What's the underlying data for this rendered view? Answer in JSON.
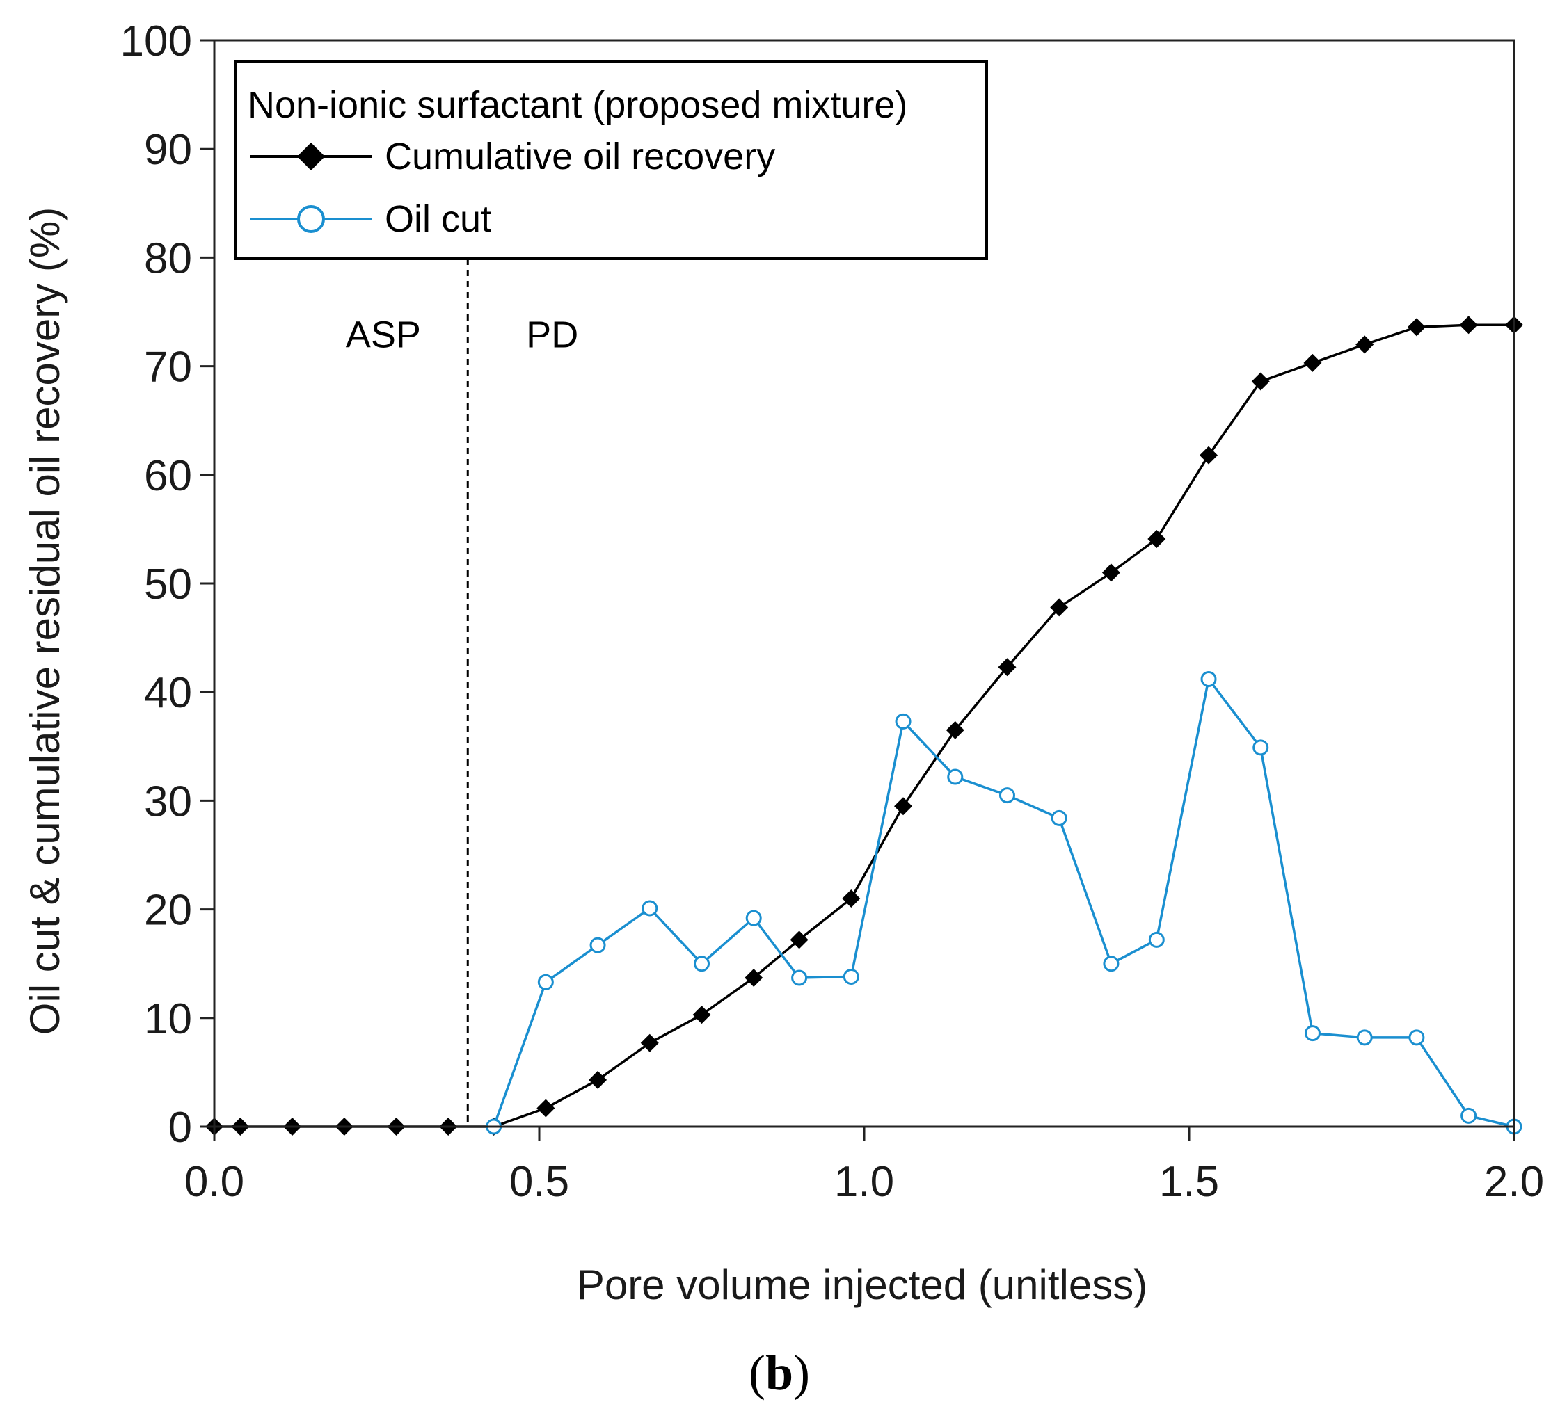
{
  "chart_data": {
    "type": "line",
    "xlabel": "Pore volume injected (unitless)",
    "ylabel": "Oil cut & cumulative residual oil recovery (%)",
    "xlim": [
      0,
      2.0
    ],
    "ylim": [
      0,
      100
    ],
    "xticks": [
      "0.0",
      "0.5",
      "1.0",
      "1.5",
      "2.0"
    ],
    "xtick_values": [
      0,
      0.5,
      1.0,
      1.5,
      2.0
    ],
    "yticks": [
      "0",
      "10",
      "20",
      "30",
      "40",
      "50",
      "60",
      "70",
      "80",
      "90",
      "100"
    ],
    "ytick_values": [
      0,
      10,
      20,
      30,
      40,
      50,
      60,
      70,
      80,
      90,
      100
    ],
    "grid": false,
    "legend": {
      "title": "Non-ionic surfactant (proposed mixture)",
      "placement": "top-left"
    },
    "divider": {
      "x": 0.39,
      "style": "dashed"
    },
    "region_labels": [
      {
        "text": "ASP",
        "x": 0.26,
        "y": 73
      },
      {
        "text": "PD",
        "x": 0.52,
        "y": 73
      }
    ],
    "panel_label": {
      "open": "(",
      "letter": "b",
      "close": ")"
    },
    "series": [
      {
        "name": "Cumulative oil recovery",
        "color": "#000000",
        "marker": "filled-diamond",
        "x": [
          0,
          0.04,
          0.12,
          0.2,
          0.28,
          0.36,
          0.43,
          0.51,
          0.59,
          0.67,
          0.75,
          0.83,
          0.9,
          0.98,
          1.06,
          1.14,
          1.22,
          1.3,
          1.38,
          1.45,
          1.53,
          1.61,
          1.69,
          1.77,
          1.85,
          1.93,
          2.0
        ],
        "values": [
          0,
          0,
          0,
          0,
          0,
          0,
          0,
          1.7,
          4.3,
          7.7,
          10.3,
          13.7,
          17.2,
          21.0,
          29.5,
          36.5,
          42.3,
          47.8,
          51.0,
          54.1,
          61.8,
          68.6,
          70.3,
          72.0,
          73.6,
          73.8,
          73.8
        ]
      },
      {
        "name": "Oil cut",
        "color": "#1a8fd0",
        "marker": "open-circle",
        "x": [
          0.43,
          0.51,
          0.59,
          0.67,
          0.75,
          0.83,
          0.9,
          0.98,
          1.06,
          1.14,
          1.22,
          1.3,
          1.38,
          1.45,
          1.53,
          1.61,
          1.69,
          1.77,
          1.85,
          1.93,
          2.0
        ],
        "values": [
          0,
          13.3,
          16.7,
          20.1,
          15.0,
          19.2,
          13.7,
          13.8,
          37.3,
          32.2,
          30.5,
          28.4,
          15.0,
          17.2,
          41.2,
          34.9,
          8.6,
          8.2,
          8.2,
          1.0,
          0
        ]
      }
    ]
  }
}
